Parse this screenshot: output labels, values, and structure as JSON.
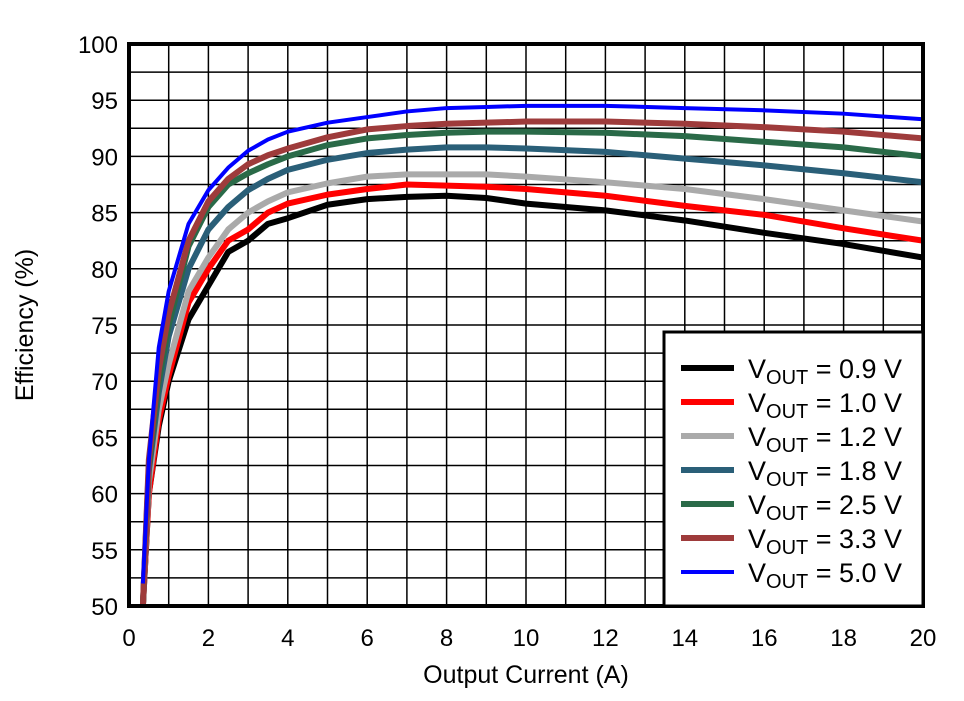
{
  "chart_data": {
    "type": "line",
    "title": "",
    "xlabel": "Output Current (A)",
    "ylabel": "Efficiency (%)",
    "xlim": [
      0,
      20
    ],
    "ylim": [
      50,
      100
    ],
    "xticks": [
      "0",
      "2",
      "4",
      "6",
      "8",
      "10",
      "12",
      "14",
      "16",
      "18",
      "20"
    ],
    "yticks": [
      "50",
      "55",
      "60",
      "65",
      "70",
      "75",
      "80",
      "85",
      "90",
      "95",
      "100"
    ],
    "grid": true,
    "legend_position": "bottom-right",
    "x": [
      0.35,
      0.5,
      0.75,
      1,
      1.5,
      2,
      2.5,
      3,
      3.5,
      4,
      5,
      6,
      7,
      8,
      9,
      10,
      12,
      14,
      16,
      18,
      20
    ],
    "series": [
      {
        "name": "VOUT = 0.9 V",
        "label_main": "V",
        "label_sub": "OUT",
        "label_rest": " = 0.9 V",
        "color": "#000000",
        "values": [
          50,
          60,
          66,
          70,
          75.5,
          78.5,
          81.5,
          82.5,
          84,
          84.5,
          85.7,
          86.2,
          86.4,
          86.5,
          86.3,
          85.8,
          85.2,
          84.3,
          83.2,
          82.2,
          81.0
        ]
      },
      {
        "name": "VOUT = 1.0 V",
        "label_main": "V",
        "label_sub": "OUT",
        "label_rest": " = 1.0 V",
        "color": "#ff0000",
        "values": [
          50,
          60,
          66.5,
          70.5,
          77,
          80,
          82.5,
          83.5,
          85,
          85.8,
          86.6,
          87.1,
          87.5,
          87.4,
          87.3,
          87.1,
          86.5,
          85.6,
          84.8,
          83.6,
          82.5
        ]
      },
      {
        "name": "VOUT = 1.2 V",
        "label_main": "V",
        "label_sub": "OUT",
        "label_rest": " = 1.2 V",
        "color": "#aaaaaa",
        "values": [
          50,
          61,
          67.5,
          71.5,
          78,
          81,
          83.5,
          85,
          86,
          86.8,
          87.6,
          88.2,
          88.4,
          88.4,
          88.4,
          88.2,
          87.7,
          87.1,
          86.2,
          85.2,
          84.2
        ]
      },
      {
        "name": "VOUT = 1.8 V",
        "label_main": "V",
        "label_sub": "OUT",
        "label_rest": " = 1.8 V",
        "color": "#2a5f78",
        "values": [
          50,
          62,
          69,
          74,
          80,
          83.5,
          85.5,
          87,
          88,
          88.8,
          89.7,
          90.3,
          90.6,
          90.8,
          90.8,
          90.7,
          90.4,
          89.8,
          89.2,
          88.5,
          87.7
        ]
      },
      {
        "name": "VOUT = 2.5 V",
        "label_main": "V",
        "label_sub": "OUT",
        "label_rest": " = 2.5 V",
        "color": "#2a6a48",
        "values": [
          50,
          62.5,
          70,
          75,
          82,
          85.5,
          87.5,
          88.5,
          89.3,
          90,
          91,
          91.6,
          91.9,
          92.1,
          92.2,
          92.2,
          92.1,
          91.8,
          91.3,
          90.8,
          90.0
        ]
      },
      {
        "name": "VOUT = 3.3 V",
        "label_main": "V",
        "label_sub": "OUT",
        "label_rest": " = 3.3 V",
        "color": "#9e3b3b",
        "values": [
          50,
          63,
          71,
          76,
          82.5,
          86,
          88,
          89.3,
          90.1,
          90.7,
          91.7,
          92.4,
          92.7,
          92.9,
          93.0,
          93.1,
          93.1,
          92.9,
          92.6,
          92.2,
          91.6
        ]
      },
      {
        "name": "VOUT = 5.0 V",
        "label_main": "V",
        "label_sub": "OUT",
        "label_rest": " = 5.0 V",
        "color": "#0000ff",
        "values": [
          52,
          63,
          73,
          78,
          84,
          87,
          89,
          90.5,
          91.5,
          92.2,
          93,
          93.5,
          94,
          94.3,
          94.4,
          94.5,
          94.5,
          94.3,
          94.1,
          93.8,
          93.3
        ]
      }
    ]
  }
}
